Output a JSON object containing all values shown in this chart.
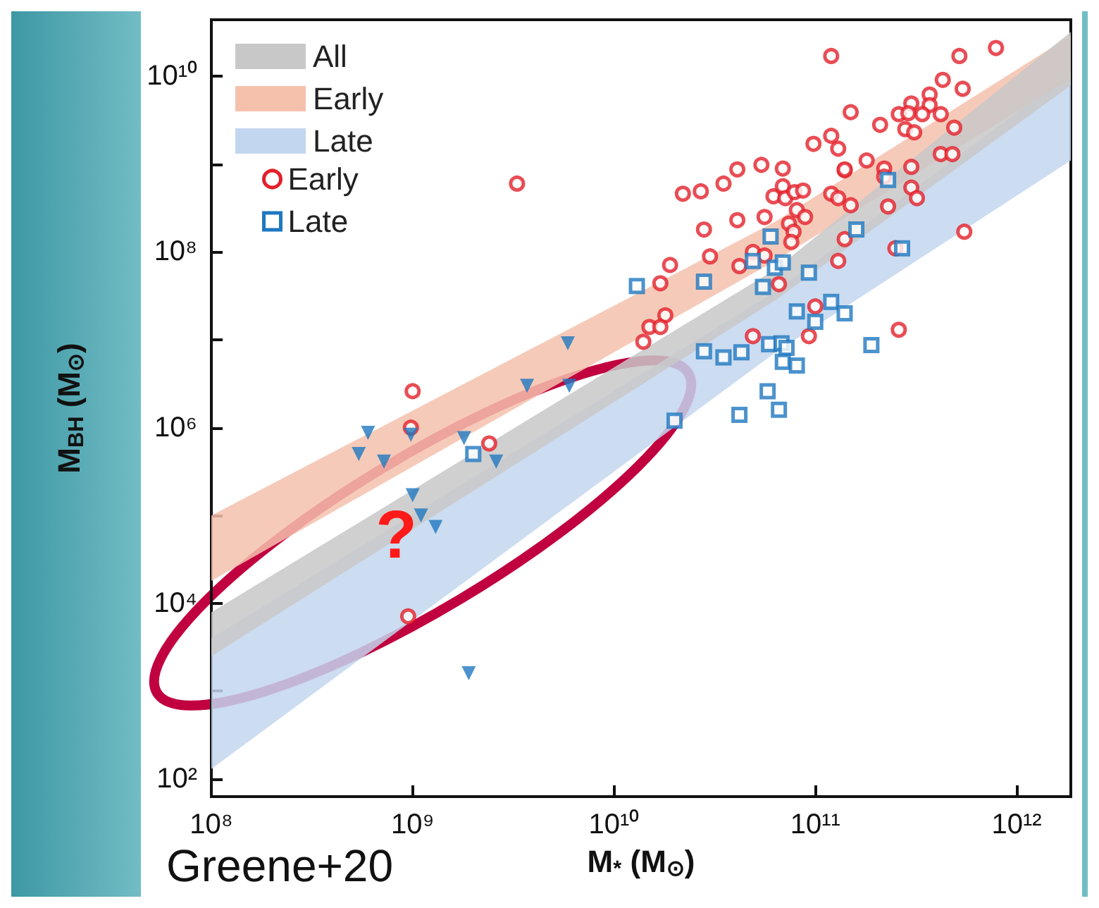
{
  "chart_data": {
    "type": "scatter",
    "xlabel": "M$_{*}$ (M$_{⊙}$)",
    "ylabel": "M$_{BH}$ (M$_{⊙}$)",
    "annotations": [
      "Greene+20",
      {
        "text": "?",
        "x": 830000000,
        "y": 59000
      }
    ],
    "log": "xy",
    "grid": false,
    "legend": "top left",
    "xlim": [
      100000000,
      1860000000000
    ],
    "ylim": [
      63,
      44000000000
    ],
    "xticks": [
      {
        "value": 100000000,
        "label": "10⁸"
      },
      {
        "value": 1000000000,
        "label": "10⁹"
      },
      {
        "value": 10000000000,
        "label": "10¹⁰"
      },
      {
        "value": 100000000000,
        "label": "10¹¹"
      },
      {
        "value": 1000000000000,
        "label": "10¹²"
      }
    ],
    "yticks": [
      {
        "value": 100,
        "label": "10²"
      },
      {
        "value": 1000,
        "label": null
      },
      {
        "value": 10000,
        "label": "10⁴"
      },
      {
        "value": 100000,
        "label": null
      },
      {
        "value": 1000000,
        "label": "10⁶"
      },
      {
        "value": 10000000,
        "label": null
      },
      {
        "value": 100000000,
        "label": "10⁸"
      },
      {
        "value": 1000000000,
        "label": null
      },
      {
        "value": 10000000000,
        "label": "10¹⁰"
      }
    ],
    "series": [
      {
        "name": "All",
        "type": "area",
        "color": "#c8c8c8",
        "x": [
          100000000,
          63000000000,
          1860000000000
        ],
        "values": [
          null,
          null,
          null
        ],
        "lower": [
          2500,
          28000000,
          7900000000
        ],
        "upper": [
          7900,
          63000000,
          32000000000
        ]
      },
      {
        "name": "Early",
        "type": "area",
        "color": "#f5c1ad",
        "x": [
          100000000,
          63000000000,
          1860000000000
        ],
        "values": [
          null,
          null,
          null
        ],
        "lower": [
          18000,
          79000000,
          9500000000
        ],
        "upper": [
          100000,
          220000000,
          29000000000
        ]
      },
      {
        "name": "Late",
        "type": "area",
        "color": "#c3d6ef",
        "x": [
          100000000,
          63000000000,
          1860000000000
        ],
        "values": [
          null,
          null,
          null
        ],
        "lower": [
          130,
          7100000,
          1100000000
        ],
        "upper": [
          4000,
          35000000,
          11000000000
        ]
      },
      {
        "name": "Early",
        "marker": "circle",
        "color": "#e3202a",
        "x": [
          120000000000.0,
          520000000000.0,
          790000000000.0,
          430000000000.0,
          540000000000.0,
          370000000000.0,
          300000000000.0,
          370000000000.0,
          150000000000.0,
          210000000000.0,
          260000000000.0,
          290000000000.0,
          340000000000.0,
          420000000000.0,
          280000000000.0,
          310000000000.0,
          490000000000.0,
          98000000000.0,
          120000000000.0,
          130000000000.0,
          420000000000.0,
          480000000000.0,
          180000000000.0,
          140000000000.0,
          140000000000.0,
          220000000000.0,
          220000000000.0,
          300000000000.0,
          54000000000.0,
          69000000000.0,
          41000000000.0,
          35000000000.0,
          22000000000.0,
          27000000000.0,
          62000000000.0,
          69000000000.0,
          71000000000.0,
          79000000000.0,
          87000000000.0,
          120000000000.0,
          130000000000.0,
          150000000000.0,
          230000000000.0,
          300000000000.0,
          320000000000.0,
          550000000000.0,
          28000000000.0,
          41000000000.0,
          56000000000.0,
          81000000000.0,
          89000000000.0,
          74000000000.0,
          78000000000.0,
          76000000000.0,
          140000000000.0,
          250000000000.0,
          49000000000.0,
          56000000000.0,
          30000000000.0,
          19000000000.0,
          42000000000.0,
          130000000000.0,
          17000000000.0,
          66000000000.0,
          18000000000.0,
          15000000000.0,
          17000000000.0,
          14000000000.0,
          49000000000.0,
          93000000000.0,
          100000000000.0,
          260000000000.0,
          3300000000.0,
          1000000000.0,
          980000000.0,
          2400000000.0,
          950000000.0
        ],
        "values": [
          17000000000.0,
          17000000000.0,
          21000000000.0,
          9100000000.0,
          7200000000.0,
          6200000000.0,
          4900000000.0,
          4700000000.0,
          3900000000.0,
          2800000000.0,
          3700000000.0,
          3800000000.0,
          3700000000.0,
          3700000000.0,
          2500000000.0,
          2300000000.0,
          2600000000.0,
          1700000000.0,
          2100000000.0,
          1500000000.0,
          1300000000.0,
          1300000000.0,
          1100000000.0,
          850000000.0,
          870000000.0,
          890000000.0,
          720000000.0,
          930000000.0,
          980000000.0,
          890000000.0,
          870000000.0,
          600000000.0,
          460000000.0,
          490000000.0,
          430000000.0,
          560000000.0,
          410000000.0,
          480000000.0,
          500000000.0,
          460000000.0,
          410000000.0,
          340000000.0,
          330000000.0,
          540000000.0,
          410000000.0,
          170000000.0,
          180000000.0,
          230000000.0,
          250000000.0,
          300000000.0,
          250000000.0,
          210000000.0,
          170000000.0,
          130000000.0,
          140000000.0,
          110000000.0,
          100000000.0,
          91000000.0,
          89000000.0,
          71000000.0,
          69000000.0,
          79000000.0,
          44000000.0,
          43000000.0,
          19000000.0,
          14000000.0,
          14000000.0,
          9500000.0,
          11000000.0,
          11000000.0,
          24000000.0,
          13000000.0,
          600000000.0,
          2600000.0,
          1000000.0,
          660000.0,
          7100.0
        ]
      },
      {
        "name": "Late",
        "marker": "square",
        "color": "#1f78c1",
        "x": [
          230000000000.0,
          60000000000.0,
          160000000000.0,
          270000000000.0,
          13000000000.0,
          28000000000.0,
          49000000000.0,
          63000000000.0,
          69000000000.0,
          55000000000.0,
          93000000000.0,
          81000000000.0,
          120000000000.0,
          140000000000.0,
          100000000000.0,
          28000000000.0,
          35000000000.0,
          43000000000.0,
          59000000000.0,
          68000000000.0,
          72000000000.0,
          69000000000.0,
          81000000000.0,
          190000000000.0,
          58000000000.0,
          42000000000.0,
          66000000000.0,
          20000000000.0,
          2000000000.0
        ],
        "values": [
          660000000.0,
          150000000.0,
          180000000.0,
          110000000.0,
          41000000.0,
          46000000.0,
          79000000.0,
          66000000.0,
          76000000.0,
          40000000.0,
          58000000.0,
          21000000.0,
          27000000.0,
          20000000.0,
          16000000.0,
          7400000.0,
          6300000.0,
          7200000.0,
          8900000.0,
          9100000.0,
          8100000.0,
          5600000.0,
          5100000.0,
          8700000.0,
          2600000.0,
          1400000.0,
          1600000.0,
          1200000.0,
          500000.0
        ]
      },
      {
        "marker": "triangle",
        "color": "#1f78c1",
        "x": [
          5900000000.0,
          3700000000.0,
          6000000000.0,
          600000000.0,
          540000000.0,
          720000000.0,
          980000000.0,
          1800000000.0,
          2600000000.0,
          1000000000.0,
          1100000000.0,
          1300000000.0,
          1900000000.0
        ],
        "values": [
          9100000.0,
          3000000.0,
          3000000.0,
          870000.0,
          500000.0,
          410000.0,
          830000.0,
          760000.0,
          410000.0,
          170000.0,
          100000.0,
          74000.0,
          1600.0
        ]
      }
    ]
  }
}
